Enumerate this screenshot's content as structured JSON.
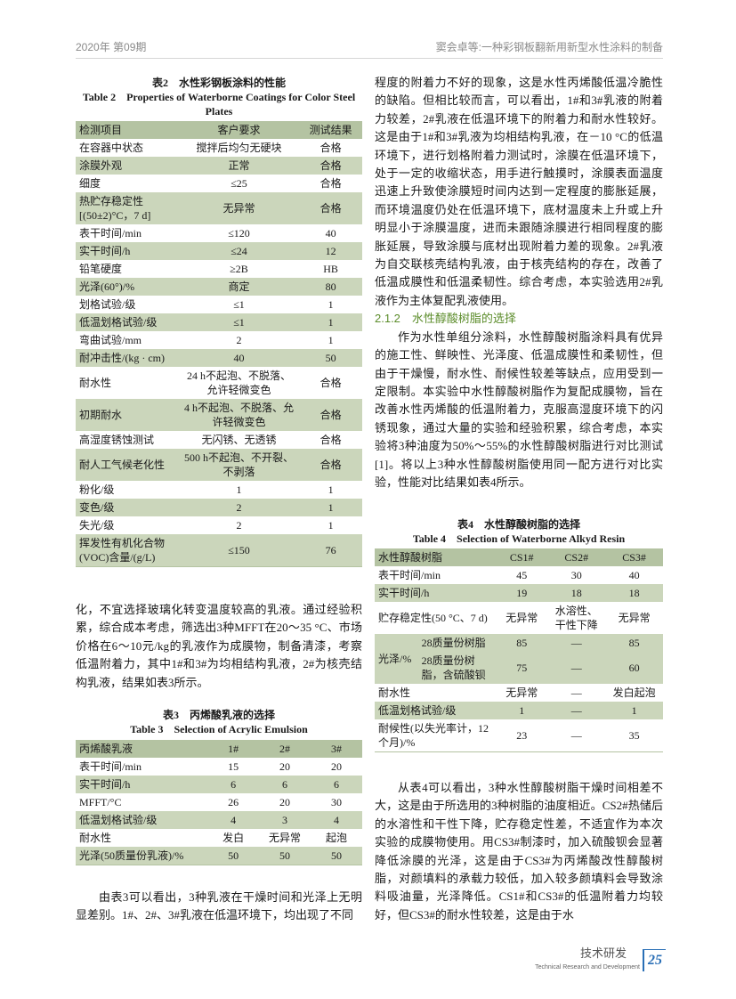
{
  "header": {
    "issue": "2020年 第09期",
    "article": "窦会卓等:一种彩钢板翻新用新型水性涂料的制备"
  },
  "table2": {
    "caption_cn": "表2　水性彩钢板涂料的性能",
    "caption_en": "Table 2　Properties of Waterborne Coatings for Color Steel Plates",
    "columns": [
      "检测项目",
      "客户要求",
      "测试结果"
    ],
    "rows": [
      [
        "在容器中状态",
        "搅拌后均匀无硬块",
        "合格"
      ],
      [
        "涂膜外观",
        "正常",
        "合格"
      ],
      [
        "细度",
        "≤25",
        "合格"
      ],
      [
        "热贮存稳定性 [(50±2)°C，7 d]",
        "无异常",
        "合格"
      ],
      [
        "表干时间/min",
        "≤120",
        "40"
      ],
      [
        "实干时间/h",
        "≤24",
        "12"
      ],
      [
        "铅笔硬度",
        "≥2B",
        "HB"
      ],
      [
        "光泽(60°)/%",
        "商定",
        "80"
      ],
      [
        "划格试验/级",
        "≤1",
        "1"
      ],
      [
        "低温划格试验/级",
        "≤1",
        "1"
      ],
      [
        "弯曲试验/mm",
        "2",
        "1"
      ],
      [
        "耐冲击性/(kg · cm)",
        "40",
        "50"
      ],
      [
        "耐水性",
        "24 h不起泡、不脱落、允许轻微变色",
        "合格"
      ],
      [
        "初期耐水",
        "4 h不起泡、不脱落、允许轻微变色",
        "合格"
      ],
      [
        "高湿度锈蚀测试",
        "无闪锈、无透锈",
        "合格"
      ],
      [
        "耐人工气候老化性",
        "500 h不起泡、不开裂、不剥落",
        "合格"
      ],
      [
        "粉化/级",
        "1",
        "1"
      ],
      [
        "变色/级",
        "2",
        "1"
      ],
      [
        "失光/级",
        "2",
        "1"
      ],
      [
        "挥发性有机化合物(VOC)含量/(g/L)",
        "≤150",
        "76"
      ]
    ]
  },
  "left_text": {
    "p1": "化，不宜选择玻璃化转变温度较高的乳液。通过经验积累，综合成本考虑，筛选出3种MFFT在20～35 °C、市场价格在6～10元/kg的乳液作为成膜物，制备清漆，考察低温附着力，其中1#和3#为均相结构乳液，2#为核壳结构乳液，结果如表3所示。",
    "p2": "由表3可以看出，3种乳液在干燥时间和光泽上无明显差别。1#、2#、3#乳液在低温环境下，均出现了不同"
  },
  "table3": {
    "caption_cn": "表3　丙烯酸乳液的选择",
    "caption_en": "Table 3　Selection of Acrylic Emulsion",
    "columns": [
      "丙烯酸乳液",
      "1#",
      "2#",
      "3#"
    ],
    "rows": [
      [
        "表干时间/min",
        "15",
        "20",
        "20"
      ],
      [
        "实干时间/h",
        "6",
        "6",
        "6"
      ],
      [
        "MFFT/°C",
        "26",
        "20",
        "30"
      ],
      [
        "低温划格试验/级",
        "4",
        "3",
        "4"
      ],
      [
        "耐水性",
        "发白",
        "无异常",
        "起泡"
      ],
      [
        "光泽(50质量份乳液)/%",
        "50",
        "50",
        "50"
      ]
    ]
  },
  "right_text": {
    "p1": "程度的附着力不好的现象，这是水性丙烯酸低温冷脆性的缺陷。但相比较而言，可以看出，1#和3#乳液的附着力较差，2#乳液在低温环境下的附着力和耐水性较好。这是由于1#和3#乳液为均相结构乳液，在－10 °C的低温环境下，进行划格附着力测试时，涂膜在低温环境下，处于一定的收缩状态，用手进行触摸时，涂膜表面温度迅速上升致使涂膜短时间内达到一定程度的膨胀延展，而环境温度仍处在低温环境下，底材温度未上升或上升明显小于涂膜温度，进而未跟随涂膜进行相同程度的膨胀延展，导致涂膜与底材出现附着力差的现象。2#乳液为自交联核壳结构乳液，由于核壳结构的存在，改善了低温成膜性和低温柔韧性。综合考虑，本实验选用2#乳液作为主体复配乳液使用。",
    "section": "2.1.2　水性醇酸树脂的选择",
    "p2": "作为水性单组分涂料，水性醇酸树脂涂料具有优异的施工性、鲜映性、光泽度、低温成膜性和柔韧性，但由于干燥慢，耐水性、耐候性较差等缺点，应用受到一定限制。本实验中水性醇酸树脂作为复配成膜物，旨在改善水性丙烯酸的低温附着力，克服高湿度环境下的闪锈现象，通过大量的实验和经验积累，综合考虑，本实验将3种油度为50%～55%的水性醇酸树脂进行对比测试[1]。将以上3种水性醇酸树脂使用同一配方进行对比实验，性能对比结果如表4所示。",
    "p3": "从表4可以看出，3种水性醇酸树脂干燥时间相差不大，这是由于所选用的3种树脂的油度相近。CS2#热储后的水溶性和干性下降，贮存稳定性差，不适宜作为本次实验的成膜物使用。用CS3#制漆时，加入硫酸钡会显著降低涂膜的光泽，这是由于CS3#为丙烯酸改性醇酸树脂，对颜填料的承载力较低，加入较多颜填料会导致涂料吸油量，光泽降低。CS1#和CS3#的低温附着力均较好，但CS3#的耐水性较差，这是由于水"
  },
  "table4": {
    "caption_cn": "表4　水性醇酸树脂的选择",
    "caption_en": "Table 4　Selection of Waterborne Alkyd Resin",
    "columns": [
      "水性醇酸树脂",
      "CS1#",
      "CS2#",
      "CS3#"
    ],
    "rows": [
      [
        "表干时间/min",
        "45",
        "30",
        "40"
      ],
      [
        "实干时间/h",
        "19",
        "18",
        "18"
      ],
      [
        "贮存稳定性(50 °C、7 d)",
        "无异常",
        "水溶性、干性下降",
        "无异常"
      ]
    ],
    "gloss": {
      "label": "光泽/%",
      "sub": [
        [
          "28质量份树脂",
          "85",
          "—",
          "85"
        ],
        [
          "28质量份树脂，含硫酸钡",
          "75",
          "—",
          "60"
        ]
      ]
    },
    "rows2": [
      [
        "耐水性",
        "无异常",
        "—",
        "发白起泡"
      ],
      [
        "低温划格试验/级",
        "1",
        "—",
        "1"
      ],
      [
        "耐候性(以失光率计，12个月)/%",
        "23",
        "—",
        "35"
      ]
    ]
  },
  "footer": {
    "section_cn": "技术研发",
    "section_en": "Technical Research and Development",
    "page": "25"
  },
  "colors": {
    "table_header": "#b4c3a2",
    "table_stripe": "#cbd6bb",
    "section_heading": "#5b8c2a",
    "page_number": "#2a6fb6"
  }
}
